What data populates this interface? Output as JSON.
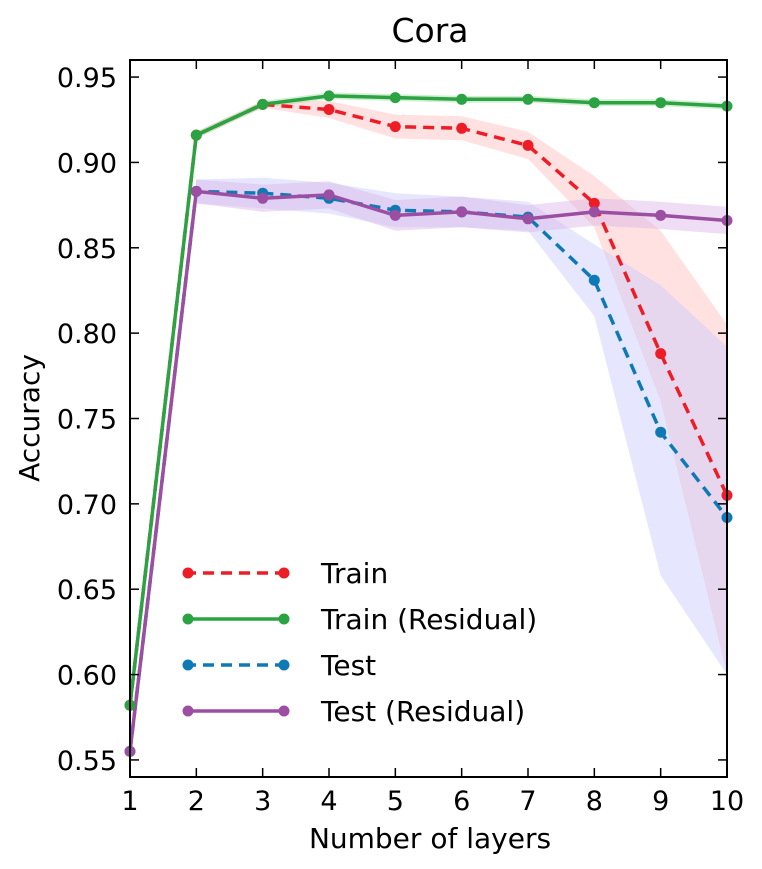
{
  "chart_data": {
    "type": "line",
    "title": "Cora",
    "xlabel": "Number of layers",
    "ylabel": "Accuracy",
    "xlim": [
      1,
      10
    ],
    "ylim": [
      0.54,
      0.96
    ],
    "xticks": [
      1,
      2,
      3,
      4,
      5,
      6,
      7,
      8,
      9,
      10
    ],
    "yticks": [
      0.55,
      0.6,
      0.65,
      0.7,
      0.75,
      0.8,
      0.85,
      0.9,
      0.95
    ],
    "ytick_labels": [
      "0.55",
      "0.60",
      "0.65",
      "0.70",
      "0.75",
      "0.80",
      "0.85",
      "0.90",
      "0.95"
    ],
    "legend_position": "lower-left",
    "x": [
      1,
      2,
      3,
      4,
      5,
      6,
      7,
      8,
      9,
      10
    ],
    "series": [
      {
        "name": "Train",
        "color": "#ee1c25",
        "style": "dashed",
        "values": [
          0.582,
          0.916,
          0.934,
          0.931,
          0.921,
          0.92,
          0.91,
          0.876,
          0.788,
          0.705
        ],
        "band_low": [
          0.58,
          0.914,
          0.932,
          0.926,
          0.914,
          0.913,
          0.902,
          0.862,
          0.76,
          0.6
        ],
        "band_high": [
          0.584,
          0.918,
          0.936,
          0.936,
          0.928,
          0.927,
          0.918,
          0.892,
          0.86,
          0.805
        ],
        "band_color": "#ffbdbd"
      },
      {
        "name": "Train (Residual)",
        "color": "#2ca343",
        "style": "solid",
        "values": [
          0.582,
          0.916,
          0.934,
          0.939,
          0.938,
          0.937,
          0.937,
          0.935,
          0.935,
          0.933
        ],
        "band_low": [
          0.58,
          0.914,
          0.932,
          0.937,
          0.936,
          0.935,
          0.935,
          0.933,
          0.933,
          0.931
        ],
        "band_high": [
          0.584,
          0.918,
          0.936,
          0.941,
          0.94,
          0.939,
          0.939,
          0.937,
          0.937,
          0.935
        ],
        "band_color": "#9edb9e"
      },
      {
        "name": "Test",
        "color": "#0e7ab5",
        "style": "dashed",
        "values": [
          0.555,
          0.883,
          0.882,
          0.879,
          0.872,
          0.871,
          0.868,
          0.831,
          0.742,
          0.692
        ],
        "band_low": [
          0.553,
          0.876,
          0.873,
          0.87,
          0.862,
          0.862,
          0.86,
          0.81,
          0.658,
          0.6
        ],
        "band_high": [
          0.557,
          0.89,
          0.891,
          0.888,
          0.882,
          0.88,
          0.877,
          0.852,
          0.828,
          0.792
        ],
        "band_color": "#c7c9ff"
      },
      {
        "name": "Test (Residual)",
        "color": "#9b4ea2",
        "style": "solid",
        "values": [
          0.555,
          0.883,
          0.879,
          0.881,
          0.869,
          0.871,
          0.867,
          0.871,
          0.869,
          0.866
        ],
        "band_low": [
          0.553,
          0.876,
          0.871,
          0.873,
          0.86,
          0.862,
          0.859,
          0.863,
          0.861,
          0.858
        ],
        "band_high": [
          0.557,
          0.89,
          0.887,
          0.889,
          0.878,
          0.88,
          0.875,
          0.879,
          0.877,
          0.874
        ],
        "band_color": "#d9b3e6"
      }
    ]
  }
}
